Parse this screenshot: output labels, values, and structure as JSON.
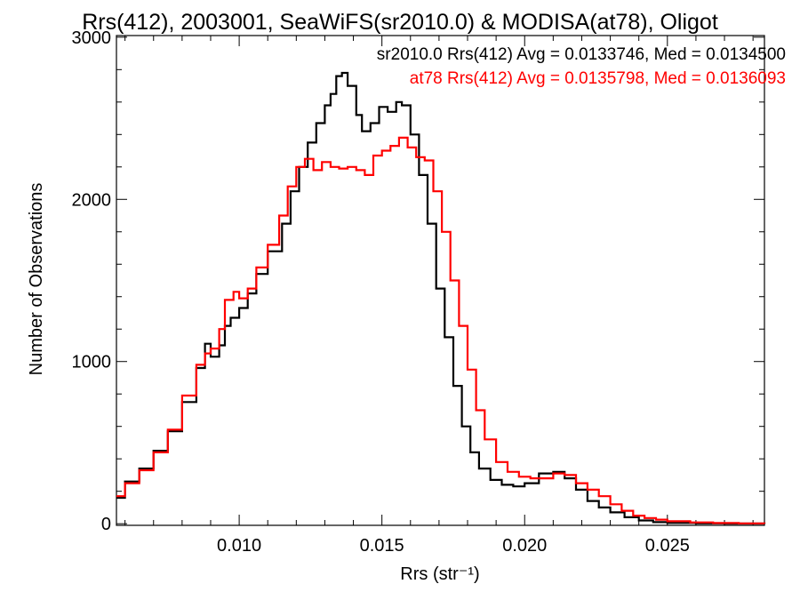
{
  "chart_data": {
    "type": "line",
    "title": "Rrs(412), 2003001, SeaWiFS(sr2010.0) & MODISA(at78), Oligot",
    "xlabel": "Rrs (str⁻¹)",
    "ylabel": "Number of Observations",
    "xlim": [
      0.0057,
      0.0284
    ],
    "ylim": [
      -10,
      3010
    ],
    "xticks": [
      0.01,
      0.015,
      0.02,
      0.025
    ],
    "xtick_labels": [
      "0.010",
      "0.015",
      "0.020",
      "0.025"
    ],
    "yticks": [
      0,
      1000,
      2000,
      3000
    ],
    "ytick_labels": [
      "0",
      "1000",
      "2000",
      "3000"
    ],
    "grid": false,
    "legend_position": "top-right",
    "series": [
      {
        "name": "sr2010.0 Rrs(412) Avg = 0.0133746, Med = 0.0134500",
        "color": "#000000",
        "points": [
          [
            0.0057,
            160
          ],
          [
            0.006,
            260
          ],
          [
            0.0065,
            340
          ],
          [
            0.007,
            450
          ],
          [
            0.0075,
            570
          ],
          [
            0.008,
            750
          ],
          [
            0.0085,
            960
          ],
          [
            0.0088,
            1110
          ],
          [
            0.009,
            1030
          ],
          [
            0.0093,
            1100
          ],
          [
            0.0095,
            1220
          ],
          [
            0.0097,
            1270
          ],
          [
            0.01,
            1330
          ],
          [
            0.0103,
            1420
          ],
          [
            0.0106,
            1540
          ],
          [
            0.011,
            1680
          ],
          [
            0.0115,
            1850
          ],
          [
            0.0118,
            2050
          ],
          [
            0.0121,
            2200
          ],
          [
            0.0124,
            2350
          ],
          [
            0.0127,
            2470
          ],
          [
            0.013,
            2580
          ],
          [
            0.0132,
            2650
          ],
          [
            0.0134,
            2760
          ],
          [
            0.0136,
            2780
          ],
          [
            0.0138,
            2700
          ],
          [
            0.0141,
            2520
          ],
          [
            0.0143,
            2420
          ],
          [
            0.0146,
            2470
          ],
          [
            0.0149,
            2570
          ],
          [
            0.0152,
            2540
          ],
          [
            0.0155,
            2600
          ],
          [
            0.0157,
            2580
          ],
          [
            0.016,
            2400
          ],
          [
            0.0163,
            2150
          ],
          [
            0.0166,
            1850
          ],
          [
            0.0169,
            1450
          ],
          [
            0.0172,
            1150
          ],
          [
            0.0175,
            850
          ],
          [
            0.0178,
            600
          ],
          [
            0.0181,
            440
          ],
          [
            0.0184,
            340
          ],
          [
            0.0188,
            270
          ],
          [
            0.0192,
            240
          ],
          [
            0.0196,
            230
          ],
          [
            0.02,
            250
          ],
          [
            0.0205,
            310
          ],
          [
            0.021,
            320
          ],
          [
            0.0214,
            280
          ],
          [
            0.0218,
            210
          ],
          [
            0.0222,
            140
          ],
          [
            0.0226,
            100
          ],
          [
            0.023,
            70
          ],
          [
            0.0235,
            40
          ],
          [
            0.024,
            20
          ],
          [
            0.0245,
            10
          ],
          [
            0.025,
            5
          ],
          [
            0.026,
            2
          ],
          [
            0.027,
            1
          ],
          [
            0.0284,
            0
          ]
        ]
      },
      {
        "name": "at78 Rrs(412) Avg = 0.0135798, Med = 0.0136093",
        "color": "#ff0000",
        "points": [
          [
            0.0057,
            170
          ],
          [
            0.006,
            250
          ],
          [
            0.0065,
            330
          ],
          [
            0.007,
            440
          ],
          [
            0.0075,
            580
          ],
          [
            0.008,
            790
          ],
          [
            0.0085,
            980
          ],
          [
            0.0088,
            1050
          ],
          [
            0.009,
            1080
          ],
          [
            0.0093,
            1200
          ],
          [
            0.0095,
            1380
          ],
          [
            0.0098,
            1430
          ],
          [
            0.01,
            1390
          ],
          [
            0.0103,
            1450
          ],
          [
            0.0106,
            1580
          ],
          [
            0.011,
            1720
          ],
          [
            0.0114,
            1900
          ],
          [
            0.0117,
            2080
          ],
          [
            0.012,
            2200
          ],
          [
            0.0123,
            2250
          ],
          [
            0.0126,
            2180
          ],
          [
            0.0129,
            2230
          ],
          [
            0.0132,
            2200
          ],
          [
            0.0135,
            2190
          ],
          [
            0.0138,
            2200
          ],
          [
            0.0141,
            2180
          ],
          [
            0.0144,
            2150
          ],
          [
            0.0147,
            2270
          ],
          [
            0.015,
            2300
          ],
          [
            0.0153,
            2330
          ],
          [
            0.0156,
            2380
          ],
          [
            0.0159,
            2320
          ],
          [
            0.0162,
            2260
          ],
          [
            0.0165,
            2240
          ],
          [
            0.0168,
            2050
          ],
          [
            0.0171,
            1800
          ],
          [
            0.0174,
            1500
          ],
          [
            0.0177,
            1220
          ],
          [
            0.018,
            950
          ],
          [
            0.0183,
            700
          ],
          [
            0.0186,
            520
          ],
          [
            0.019,
            380
          ],
          [
            0.0194,
            320
          ],
          [
            0.0198,
            290
          ],
          [
            0.0202,
            280
          ],
          [
            0.0206,
            280
          ],
          [
            0.021,
            310
          ],
          [
            0.0214,
            300
          ],
          [
            0.0218,
            250
          ],
          [
            0.0222,
            210
          ],
          [
            0.0226,
            170
          ],
          [
            0.023,
            120
          ],
          [
            0.0234,
            80
          ],
          [
            0.0238,
            50
          ],
          [
            0.0242,
            35
          ],
          [
            0.0246,
            25
          ],
          [
            0.025,
            15
          ],
          [
            0.0258,
            8
          ],
          [
            0.0266,
            4
          ],
          [
            0.0275,
            2
          ],
          [
            0.0284,
            1
          ]
        ]
      }
    ]
  }
}
